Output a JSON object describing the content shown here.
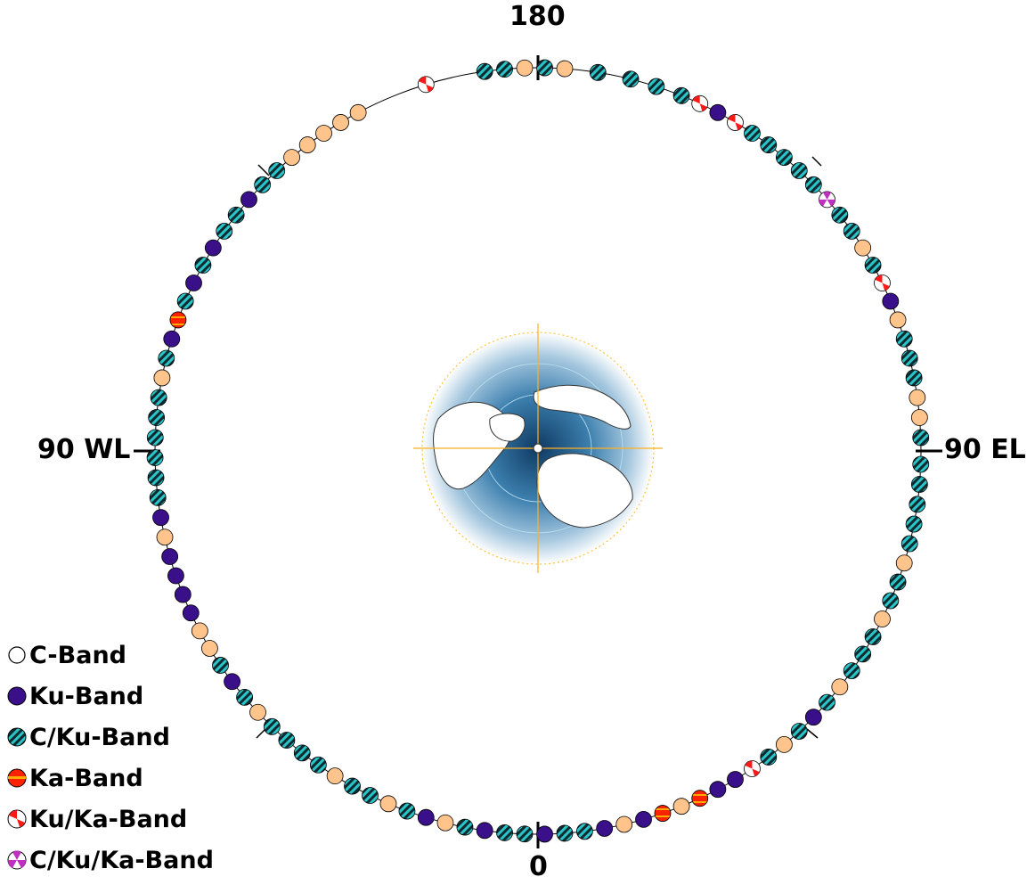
{
  "axis_labels": {
    "top": "180",
    "bottom": "0",
    "left": "90 WL",
    "right": "90 EL"
  },
  "colors": {
    "c_band": "#ffffff",
    "ku_band": "#3a0f8a",
    "cku_band_stripe_a": "#2ac5c8",
    "cku_band_stripe_b": "#0d2a30",
    "ka_band_a": "#ff2200",
    "ka_band_b": "#ffaa00",
    "kuka_band_a": "#ff1a1a",
    "kuka_band_b": "#ffffff",
    "ckuka_band_a": "#c030c0",
    "ckuka_band_b": "#ffffff",
    "peach": "#ffc38c",
    "ocean": "#2e6d9a",
    "land": "#ffffff",
    "grid": "#ffc040"
  },
  "legend": [
    {
      "key": "c",
      "label": "C-Band"
    },
    {
      "key": "ku",
      "label": "Ku-Band"
    },
    {
      "key": "cku",
      "label": "C/Ku-Band"
    },
    {
      "key": "ka",
      "label": "Ka-Band"
    },
    {
      "key": "kuka",
      "label": "Ku/Ka-Band"
    },
    {
      "key": "ckuka",
      "label": "C/Ku/Ka-Band"
    }
  ],
  "chart_data": {
    "type": "scatter",
    "description_of_axes": "angle = orbital longitude (0 at bottom, 180 at top, 90 WL left, 90 EL right)",
    "satellites": [
      {
        "lon": 179,
        "band": "cku"
      },
      {
        "lon": 171,
        "band": "cku"
      },
      {
        "lon": 176,
        "band": "c"
      },
      {
        "lon": 166,
        "band": "cku"
      },
      {
        "lon": 162,
        "band": "cku"
      },
      {
        "lon": 158,
        "band": "cku"
      },
      {
        "lon": 155,
        "band": "kuka"
      },
      {
        "lon": 152,
        "band": "ku"
      },
      {
        "lon": 149,
        "band": "kuka"
      },
      {
        "lon": 146,
        "band": "cku"
      },
      {
        "lon": 143,
        "band": "cku"
      },
      {
        "lon": 140,
        "band": "cku"
      },
      {
        "lon": 137,
        "band": "cku"
      },
      {
        "lon": 134,
        "band": "cku"
      },
      {
        "lon": 131,
        "band": "ckuka"
      },
      {
        "lon": 128,
        "band": "cku"
      },
      {
        "lon": 125,
        "band": "cku"
      },
      {
        "lon": 122,
        "band": "c"
      },
      {
        "lon": 119,
        "band": "cku"
      },
      {
        "lon": 116,
        "band": "kuka"
      },
      {
        "lon": 113,
        "band": "ku"
      },
      {
        "lon": 110,
        "band": "c"
      },
      {
        "lon": 107,
        "band": "cku"
      },
      {
        "lon": 104,
        "band": "cku"
      },
      {
        "lon": 101,
        "band": "cku"
      },
      {
        "lon": 98,
        "band": "c"
      },
      {
        "lon": 95,
        "band": "c"
      },
      {
        "lon": 92,
        "band": "cku"
      },
      {
        "lon": 88,
        "band": "cku"
      },
      {
        "lon": 85,
        "band": "cku"
      },
      {
        "lon": 82,
        "band": "cku"
      },
      {
        "lon": 79,
        "band": "cku"
      },
      {
        "lon": 76,
        "band": "cku"
      },
      {
        "lon": 73,
        "band": "c"
      },
      {
        "lon": 70,
        "band": "cku"
      },
      {
        "lon": 67,
        "band": "cku"
      },
      {
        "lon": 64,
        "band": "c"
      },
      {
        "lon": 61,
        "band": "cku"
      },
      {
        "lon": 58,
        "band": "cku"
      },
      {
        "lon": 55,
        "band": "cku"
      },
      {
        "lon": 52,
        "band": "c"
      },
      {
        "lon": 49,
        "band": "cku"
      },
      {
        "lon": 46,
        "band": "ku"
      },
      {
        "lon": 43,
        "band": "cku"
      },
      {
        "lon": 40,
        "band": "c"
      },
      {
        "lon": 37,
        "band": "cku"
      },
      {
        "lon": 34,
        "band": "kuka"
      },
      {
        "lon": 31,
        "band": "ku"
      },
      {
        "lon": 28,
        "band": "ku"
      },
      {
        "lon": 25,
        "band": "ka"
      },
      {
        "lon": 22,
        "band": "c"
      },
      {
        "lon": 19,
        "band": "ka"
      },
      {
        "lon": 16,
        "band": "ku"
      },
      {
        "lon": 13,
        "band": "c"
      },
      {
        "lon": 10,
        "band": "ku"
      },
      {
        "lon": 7,
        "band": "cku"
      },
      {
        "lon": 4,
        "band": "cku"
      },
      {
        "lon": 1,
        "band": "ku"
      },
      {
        "lon": -2,
        "band": "cku"
      },
      {
        "lon": -5,
        "band": "cku"
      },
      {
        "lon": -8,
        "band": "ku"
      },
      {
        "lon": -11,
        "band": "cku"
      },
      {
        "lon": -14,
        "band": "c"
      },
      {
        "lon": -17,
        "band": "ku"
      },
      {
        "lon": -20,
        "band": "cku"
      },
      {
        "lon": -23,
        "band": "c"
      },
      {
        "lon": -26,
        "band": "cku"
      },
      {
        "lon": -29,
        "band": "cku"
      },
      {
        "lon": -32,
        "band": "c"
      },
      {
        "lon": -35,
        "band": "cku"
      },
      {
        "lon": -38,
        "band": "cku"
      },
      {
        "lon": -41,
        "band": "cku"
      },
      {
        "lon": -44,
        "band": "cku"
      },
      {
        "lon": -47,
        "band": "c"
      },
      {
        "lon": -50,
        "band": "cku"
      },
      {
        "lon": -53,
        "band": "ku"
      },
      {
        "lon": -56,
        "band": "cku"
      },
      {
        "lon": -59,
        "band": "c"
      },
      {
        "lon": -62,
        "band": "c"
      },
      {
        "lon": -65,
        "band": "ku"
      },
      {
        "lon": -68,
        "band": "ku"
      },
      {
        "lon": -71,
        "band": "ku"
      },
      {
        "lon": -74,
        "band": "ku"
      },
      {
        "lon": -77,
        "band": "c"
      },
      {
        "lon": -80,
        "band": "ku"
      },
      {
        "lon": -83,
        "band": "cku"
      },
      {
        "lon": -86,
        "band": "cku"
      },
      {
        "lon": -89,
        "band": "cku"
      },
      {
        "lon": -92,
        "band": "cku"
      },
      {
        "lon": -95,
        "band": "cku"
      },
      {
        "lon": -98,
        "band": "cku"
      },
      {
        "lon": -101,
        "band": "c"
      },
      {
        "lon": -104,
        "band": "cku"
      },
      {
        "lon": -107,
        "band": "ku"
      },
      {
        "lon": -110,
        "band": "ka"
      },
      {
        "lon": -113,
        "band": "cku"
      },
      {
        "lon": -116,
        "band": "ku"
      },
      {
        "lon": -119,
        "band": "cku"
      },
      {
        "lon": -122,
        "band": "ku"
      },
      {
        "lon": -125,
        "band": "cku"
      },
      {
        "lon": -128,
        "band": "cku"
      },
      {
        "lon": -131,
        "band": "ku"
      },
      {
        "lon": -134,
        "band": "cku"
      },
      {
        "lon": -137,
        "band": "cku"
      },
      {
        "lon": -140,
        "band": "c"
      },
      {
        "lon": -143,
        "band": "c"
      },
      {
        "lon": -146,
        "band": "c"
      },
      {
        "lon": -149,
        "band": "c"
      },
      {
        "lon": -152,
        "band": "c"
      },
      {
        "lon": -163,
        "band": "kuka"
      },
      {
        "lon": -172,
        "band": "cku"
      },
      {
        "lon": -175,
        "band": "cku"
      },
      {
        "lon": -178,
        "band": "c"
      }
    ]
  }
}
